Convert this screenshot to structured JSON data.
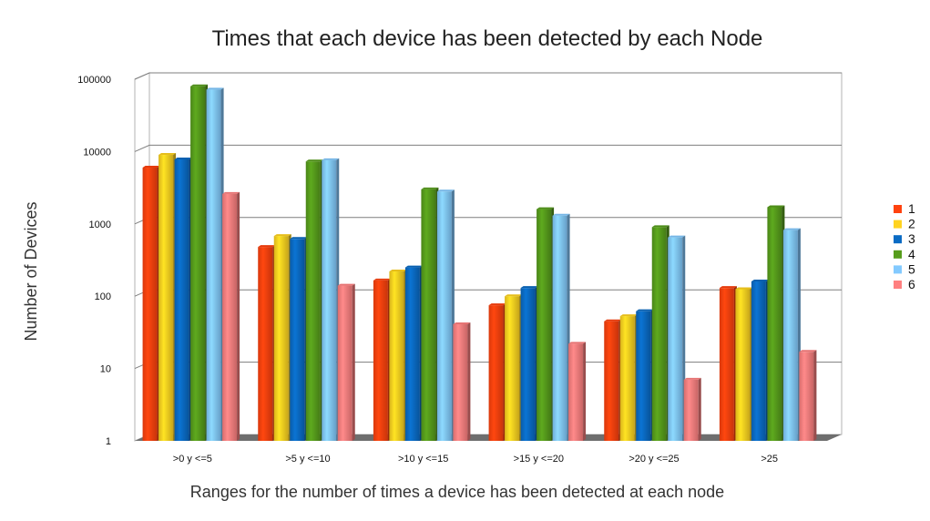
{
  "chart_data": {
    "type": "bar",
    "title": "Times that each device has been detected by each Node",
    "xlabel": "Ranges for the number of times a device has been detected at each node",
    "ylabel": "Number of Devices",
    "yscale": "log",
    "ylim": [
      1,
      100000
    ],
    "yticks": [
      "1",
      "10",
      "100",
      "1000",
      "10000",
      "100000"
    ],
    "grid": true,
    "legend_position": "right",
    "categories": [
      ">0  y <=5",
      ">5 y <=10",
      ">10 y <=15",
      ">15 y <=20",
      ">20 y <=25",
      ">25"
    ],
    "series": [
      {
        "name": "1",
        "color": "#ff420e",
        "values": [
          6000,
          480,
          165,
          75,
          45,
          130
        ]
      },
      {
        "name": "2",
        "color": "#ffd320",
        "values": [
          9000,
          680,
          220,
          100,
          53,
          125
        ]
      },
      {
        "name": "3",
        "color": "#0a6bc4",
        "values": [
          7800,
          620,
          250,
          130,
          62,
          160
        ]
      },
      {
        "name": "4",
        "color": "#579d1c",
        "values": [
          80000,
          7300,
          3000,
          1600,
          900,
          1700
        ]
      },
      {
        "name": "5",
        "color": "#83caff",
        "values": [
          72000,
          7600,
          2800,
          1300,
          650,
          820
        ]
      },
      {
        "name": "6",
        "color": "#ff8080",
        "values": [
          2600,
          140,
          41,
          22,
          7,
          17
        ]
      }
    ]
  }
}
